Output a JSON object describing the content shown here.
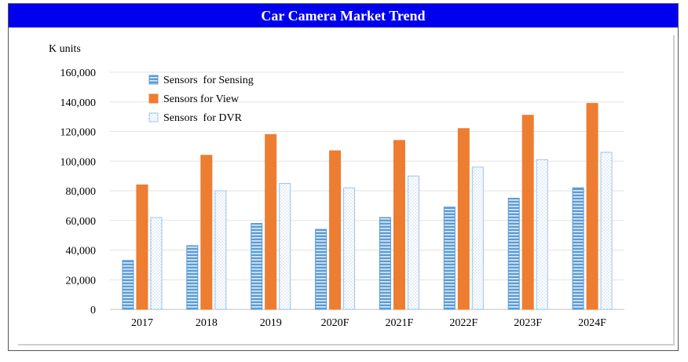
{
  "title": "Car Camera Market Trend",
  "chart_data": {
    "type": "bar",
    "title": "Car Camera Market Trend",
    "ylabel": "K units",
    "xlabel": "",
    "ylim": [
      0,
      160000
    ],
    "yticks": [
      "0",
      "20,000",
      "40,000",
      "60,000",
      "80,000",
      "100,000",
      "120,000",
      "140,000",
      "160,000"
    ],
    "yticks_values": [
      0,
      20000,
      40000,
      60000,
      80000,
      100000,
      120000,
      140000,
      160000
    ],
    "grid": true,
    "legend_position": "top-left",
    "categories": [
      "2017",
      "2018",
      "2019",
      "2020F",
      "2021F",
      "2022F",
      "2023F",
      "2024F"
    ],
    "series": [
      {
        "name": "Sensors  for Sensing",
        "values": [
          33000,
          43000,
          58000,
          54000,
          62000,
          69000,
          75000,
          82000
        ],
        "color": "#5b9bd5",
        "pattern": "horizontal-stripes"
      },
      {
        "name": "Sensors for View",
        "values": [
          84000,
          104000,
          118000,
          107000,
          114000,
          122000,
          131000,
          139000
        ],
        "color": "#ed7d31",
        "pattern": "solid"
      },
      {
        "name": "Sensors  for DVR",
        "values": [
          62000,
          80000,
          85000,
          82000,
          90000,
          96000,
          101000,
          106000
        ],
        "color": "#9dc3e6",
        "pattern": "dots"
      }
    ]
  }
}
